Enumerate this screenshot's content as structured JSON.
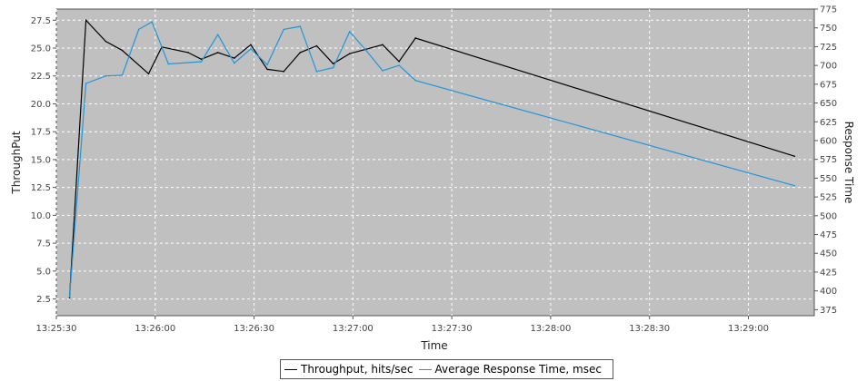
{
  "chart_data": {
    "type": "line",
    "xlabel": "Time",
    "ylabel": "ThroughPut",
    "y2label": "Response Time",
    "xlim": [
      "13:25:30",
      "13:29:20"
    ],
    "ylim": [
      1.0,
      28.5
    ],
    "y2lim": [
      367,
      775
    ],
    "x_ticks": [
      "13:25:30",
      "13:26:00",
      "13:26:30",
      "13:27:00",
      "13:27:30",
      "13:28:00",
      "13:28:30",
      "13:29:00"
    ],
    "y_ticks": [
      2.5,
      5.0,
      7.5,
      10.0,
      12.5,
      15.0,
      17.5,
      20.0,
      22.5,
      25.0,
      27.5
    ],
    "y2_ticks": [
      375,
      400,
      425,
      450,
      475,
      500,
      525,
      550,
      575,
      600,
      625,
      650,
      675,
      700,
      725,
      750,
      775
    ],
    "grid": true,
    "background": "#c0c0c0",
    "legend": "bottom",
    "series": [
      {
        "name": "Throughput, hits/sec",
        "axis": "left",
        "color": "#000000",
        "x": [
          "13:25:34",
          "13:25:39",
          "13:25:45",
          "13:25:50",
          "13:25:58",
          "13:26:02",
          "13:26:10",
          "13:26:14",
          "13:26:19",
          "13:26:24",
          "13:26:29",
          "13:26:34",
          "13:26:39",
          "13:26:44",
          "13:26:49",
          "13:26:54",
          "13:26:59",
          "13:27:09",
          "13:27:14",
          "13:27:19",
          "13:29:14"
        ],
        "values": [
          2.6,
          27.5,
          25.6,
          24.8,
          22.7,
          25.1,
          24.6,
          24.0,
          24.6,
          24.1,
          25.3,
          23.1,
          22.9,
          24.6,
          25.2,
          23.6,
          24.5,
          25.3,
          23.8,
          25.9,
          15.3
        ]
      },
      {
        "name": "Average Response Time, msec",
        "axis": "right",
        "color": "#2196d8",
        "x": [
          "13:25:34",
          "13:25:39",
          "13:25:45",
          "13:25:50",
          "13:25:55",
          "13:25:59",
          "13:26:04",
          "13:26:14",
          "13:26:19",
          "13:26:24",
          "13:26:29",
          "13:26:34",
          "13:26:39",
          "13:26:44",
          "13:26:49",
          "13:26:54",
          "13:26:59",
          "13:27:04",
          "13:27:09",
          "13:27:14",
          "13:27:19",
          "13:29:14"
        ],
        "values": [
          392,
          676,
          686,
          687,
          748,
          758,
          702,
          705,
          741,
          703,
          722,
          701,
          748,
          752,
          692,
          697,
          745,
          720,
          693,
          700,
          680,
          540
        ]
      }
    ]
  }
}
